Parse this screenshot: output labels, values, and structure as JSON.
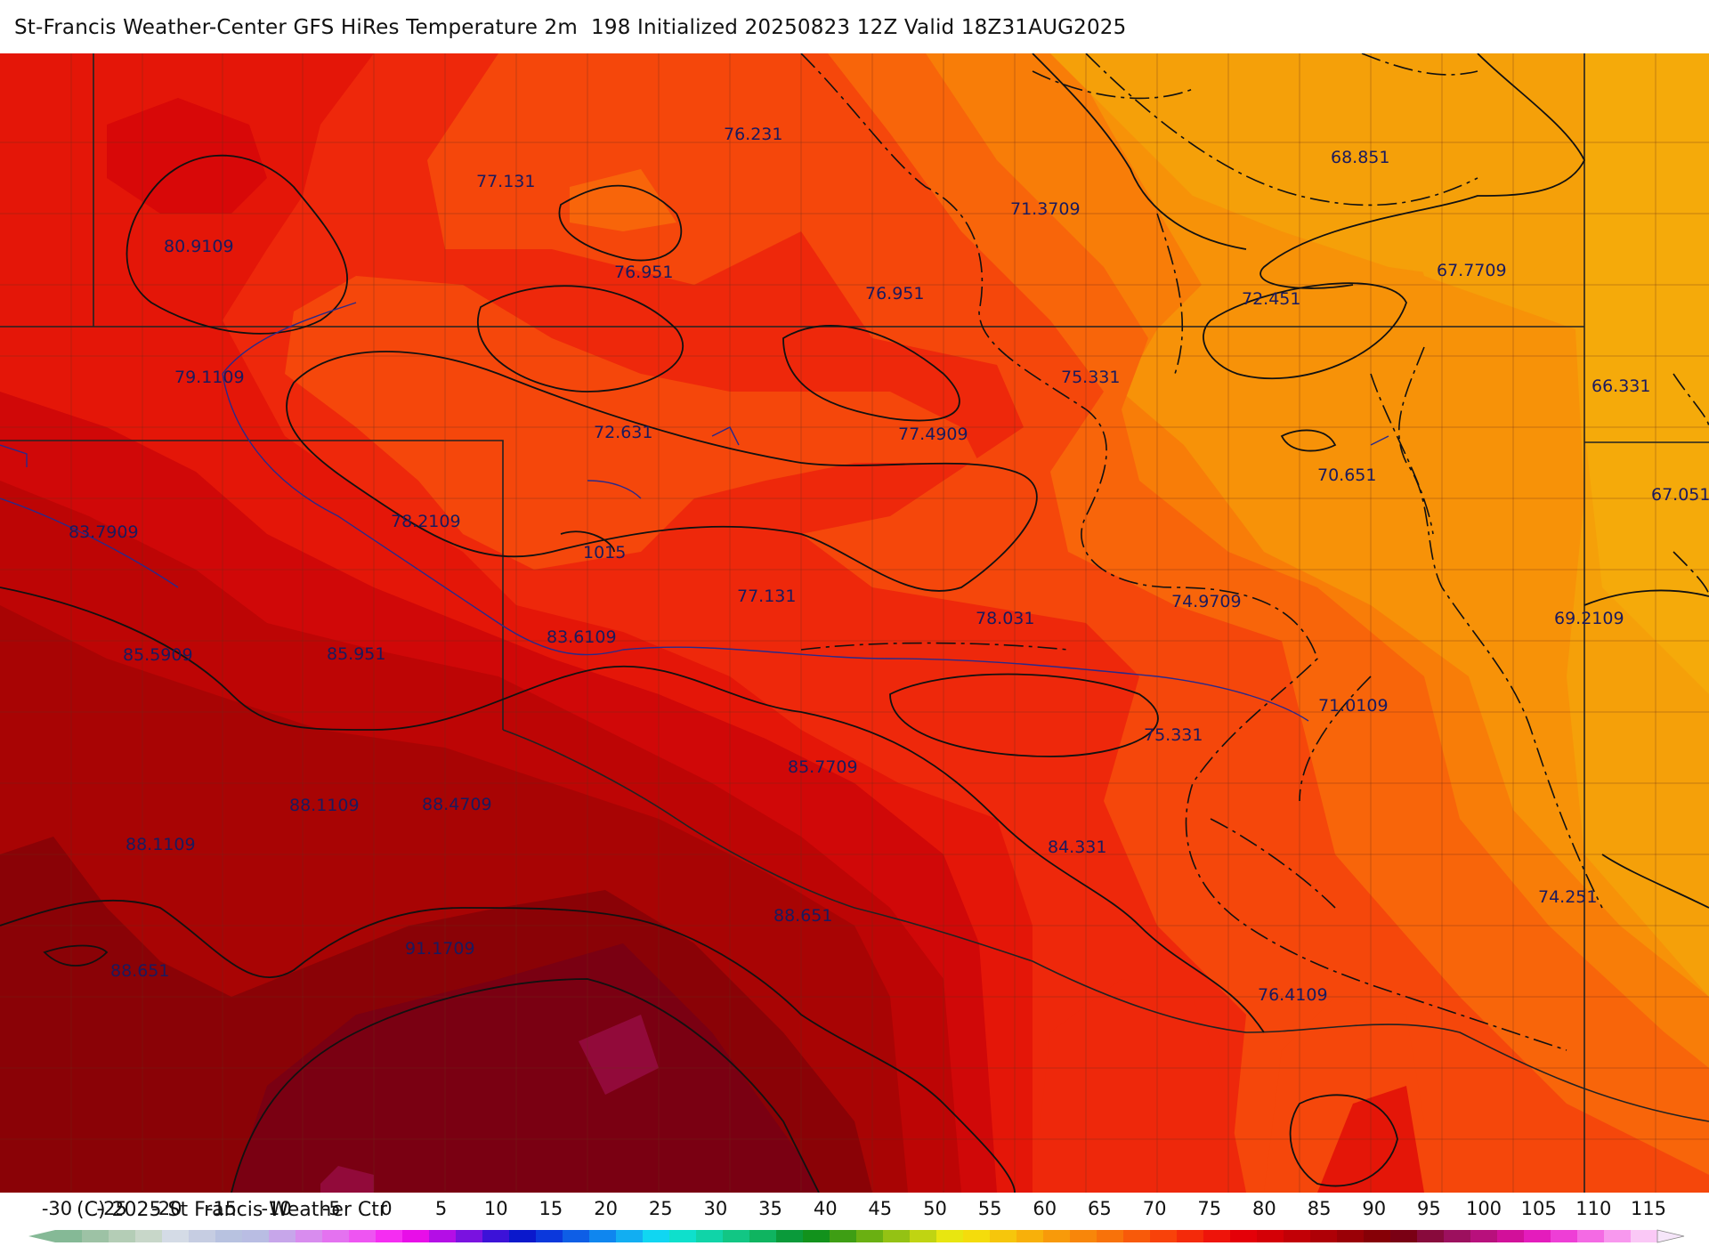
{
  "header": {
    "title": "St-Francis Weather-Center GFS HiRes Temperature 2m  198 Initialized 20250823 12Z Valid 18Z31AUG2025"
  },
  "footer": {
    "copyright": "(C) 2025 St Francis Weather Ctr"
  },
  "map": {
    "temperature_labels": [
      {
        "text": "76.231"
      },
      {
        "text": "77.131"
      },
      {
        "text": "80.9109"
      },
      {
        "text": "76.951"
      },
      {
        "text": "76.951"
      },
      {
        "text": "71.3709"
      },
      {
        "text": "68.851"
      },
      {
        "text": "67.7709"
      },
      {
        "text": "72.451"
      },
      {
        "text": "79.1109"
      },
      {
        "text": "75.331"
      },
      {
        "text": "66.331"
      },
      {
        "text": "72.631"
      },
      {
        "text": "77.4909"
      },
      {
        "text": "70.651"
      },
      {
        "text": "67.051"
      },
      {
        "text": "83.7909"
      },
      {
        "text": "78.2109"
      },
      {
        "text": "1015"
      },
      {
        "text": "77.131"
      },
      {
        "text": "74.9709"
      },
      {
        "text": "78.031"
      },
      {
        "text": "69.2109"
      },
      {
        "text": "85.5909"
      },
      {
        "text": "85.951"
      },
      {
        "text": "83.6109"
      },
      {
        "text": "71.0109"
      },
      {
        "text": "75.331"
      },
      {
        "text": "85.7709"
      },
      {
        "text": "88.1109"
      },
      {
        "text": "88.4709"
      },
      {
        "text": "88.1109"
      },
      {
        "text": "84.331"
      },
      {
        "text": "74.251"
      },
      {
        "text": "88.651"
      },
      {
        "text": "91.1709"
      },
      {
        "text": "88.651"
      },
      {
        "text": "76.4109"
      }
    ]
  },
  "colorbar": {
    "ticks": [
      "-30",
      "-25",
      "-20",
      "-15",
      "-10",
      "-5",
      "0",
      "5",
      "10",
      "15",
      "20",
      "25",
      "30",
      "35",
      "40",
      "45",
      "50",
      "55",
      "60",
      "65",
      "70",
      "75",
      "80",
      "85",
      "90",
      "95",
      "100",
      "105",
      "110",
      "115"
    ],
    "colors": [
      "#85b996",
      "#9dc2a5",
      "#b4cdb6",
      "#c8d7c9",
      "#d4dbe6",
      "#c6cde2",
      "#b8c2e0",
      "#b9bde3",
      "#c7a6ea",
      "#d88cee",
      "#e472f0",
      "#ee55f2",
      "#f52df2",
      "#e80ee8",
      "#b40ee6",
      "#7a12e0",
      "#3c12d8",
      "#0a18cc",
      "#0b38dc",
      "#0e5ee6",
      "#0f86ef",
      "#12aef2",
      "#10d6f2",
      "#0ee0cc",
      "#10d4a8",
      "#12c684",
      "#0fb460",
      "#0a9a3a",
      "#12921c",
      "#3e9e14",
      "#6ab012",
      "#94c214",
      "#c0d412",
      "#e8e610",
      "#f4dc0c",
      "#f6c60c",
      "#f8b00a",
      "#f89a0a",
      "#f8860a",
      "#f8720a",
      "#f85a0a",
      "#f8420a",
      "#f42a0a",
      "#ee140a",
      "#e40008",
      "#d40006",
      "#c20006",
      "#ae0006",
      "#9a0006",
      "#860006",
      "#7a0014",
      "#880a3c",
      "#9c105e",
      "#b8107c",
      "#d2109a",
      "#e41cbc",
      "#ee3ed6",
      "#f46ae4",
      "#f898ee",
      "#fac8f6"
    ],
    "extend_left_color": "#85b996",
    "extend_right_color": "#f6e6fa"
  }
}
